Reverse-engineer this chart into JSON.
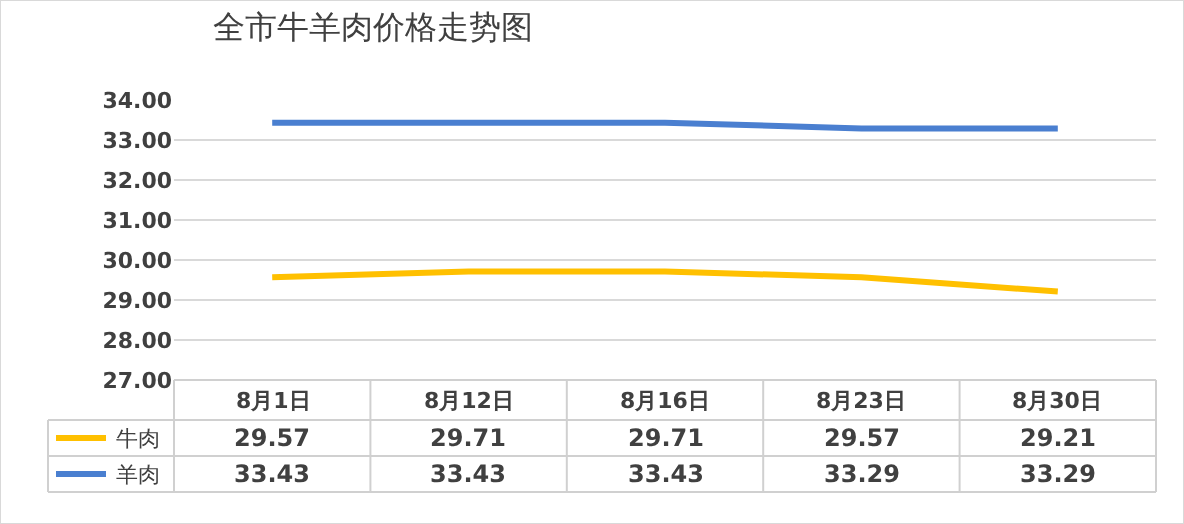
{
  "chart_data": {
    "type": "line",
    "title": "全市牛羊肉价格走势图",
    "categories": [
      "8月1日",
      "8月12日",
      "8月16日",
      "8月23日",
      "8月30日"
    ],
    "series": [
      {
        "name": "牛肉",
        "color": "#ffc000",
        "values": [
          29.57,
          29.71,
          29.71,
          29.57,
          29.21
        ]
      },
      {
        "name": "羊肉",
        "color": "#4a7fd0",
        "values": [
          33.43,
          33.43,
          33.43,
          33.29,
          33.29
        ]
      }
    ],
    "ylim": [
      27,
      34
    ],
    "yticks": [
      {
        "value": 27,
        "label": "27.00"
      },
      {
        "value": 28,
        "label": "28.00"
      },
      {
        "value": 29,
        "label": "29.00"
      },
      {
        "value": 30,
        "label": "30.00"
      },
      {
        "value": 31,
        "label": "31.00"
      },
      {
        "value": 32,
        "label": "32.00"
      },
      {
        "value": 33,
        "label": "33.00"
      },
      {
        "value": 34,
        "label": "34.00"
      }
    ],
    "grid": "y",
    "legend": "bottom",
    "data_labels": true,
    "marker": "none",
    "line_style": "solid"
  }
}
